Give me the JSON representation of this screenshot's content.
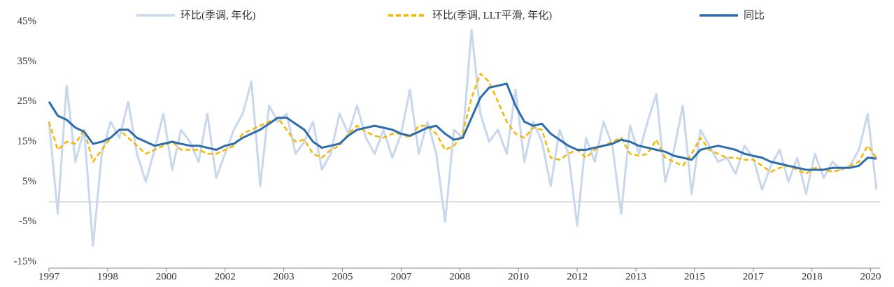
{
  "chart_data": {
    "type": "line",
    "x": [
      1997,
      1997.25,
      1997.5,
      1997.75,
      1998,
      1998.25,
      1998.5,
      1998.75,
      1999,
      1999.25,
      1999.5,
      1999.75,
      2000,
      2000.25,
      2000.5,
      2000.75,
      2001,
      2001.25,
      2001.5,
      2001.75,
      2002,
      2002.25,
      2002.5,
      2002.75,
      2003,
      2003.25,
      2003.5,
      2003.75,
      2004,
      2004.25,
      2004.5,
      2004.75,
      2005,
      2005.25,
      2005.5,
      2005.75,
      2006,
      2006.25,
      2006.5,
      2006.75,
      2007,
      2007.25,
      2007.5,
      2007.75,
      2008,
      2008.25,
      2008.5,
      2008.75,
      2009,
      2009.25,
      2009.5,
      2009.75,
      2010,
      2010.25,
      2010.5,
      2010.75,
      2011,
      2011.25,
      2011.5,
      2011.75,
      2012,
      2012.25,
      2012.5,
      2012.75,
      2013,
      2013.25,
      2013.5,
      2013.75,
      2014,
      2014.25,
      2014.5,
      2014.75,
      2015,
      2015.25,
      2015.5,
      2015.75,
      2016,
      2016.25,
      2016.5,
      2016.75,
      2017,
      2017.25,
      2017.5,
      2017.75,
      2018,
      2018.25,
      2018.5,
      2018.75,
      2019,
      2019.25,
      2019.5,
      2019.75,
      2020,
      2020.25,
      2020.5
    ],
    "series": [
      {
        "name": "环比(季调, 年化)",
        "color": "#c9d7ec",
        "style": "solid",
        "values": [
          20,
          -3,
          29,
          10,
          18,
          -11,
          12,
          20,
          16,
          25,
          12,
          5,
          13,
          22,
          8,
          18,
          15,
          10,
          22,
          6,
          12,
          18,
          22,
          30,
          4,
          24,
          20,
          22,
          12,
          15,
          20,
          8,
          12,
          22,
          17,
          24,
          16,
          12,
          18,
          11,
          17,
          28,
          12,
          20,
          12,
          -5,
          18,
          16,
          43,
          22,
          15,
          18,
          12,
          28,
          10,
          20,
          15,
          4,
          18,
          12,
          -6,
          16,
          10,
          20,
          14,
          -3,
          19,
          12,
          20,
          27,
          5,
          13,
          24,
          2,
          18,
          14,
          10,
          11,
          7,
          14,
          11,
          3,
          9,
          13,
          5,
          11,
          2,
          12,
          6,
          10,
          8,
          9,
          13,
          22,
          3
        ]
      },
      {
        "name": "环比(季调, LLT平滑, 年化)",
        "color": "#f5b800",
        "style": "dashed",
        "values": [
          20,
          13,
          15,
          14.5,
          18,
          10,
          13,
          16,
          18,
          16,
          14,
          12,
          13,
          14,
          15,
          13,
          13,
          13,
          12,
          12,
          13,
          14,
          17,
          18,
          19,
          20,
          21,
          18,
          15,
          15.5,
          12,
          11,
          13,
          14,
          17,
          19,
          17.5,
          16.5,
          16,
          17,
          17,
          16,
          19,
          19,
          17,
          13,
          14,
          17,
          26,
          32,
          30,
          25,
          20,
          17,
          16,
          18.5,
          18,
          11,
          10.5,
          12,
          13,
          11,
          13,
          14,
          15,
          16,
          12,
          11.5,
          12,
          15.5,
          11,
          10,
          9,
          12,
          16,
          13,
          12,
          11,
          11,
          10.5,
          10.5,
          9,
          7.5,
          8.5,
          9,
          8,
          7,
          8.5,
          8,
          7.5,
          8,
          9,
          10,
          14,
          11
        ]
      },
      {
        "name": "同比",
        "color": "#2e6dab",
        "style": "solid",
        "values": [
          25,
          21.5,
          20.5,
          18.5,
          17.5,
          14.5,
          15,
          16,
          18,
          18,
          16,
          15,
          14,
          14.5,
          15,
          14.5,
          14,
          14,
          13.5,
          13,
          14,
          14.5,
          16,
          17,
          18,
          19.5,
          21,
          21,
          19.5,
          18,
          15,
          13.5,
          14,
          14.5,
          16.5,
          18,
          18.5,
          19,
          18.5,
          18,
          17,
          16.5,
          17.5,
          18.5,
          19,
          17,
          15.5,
          16,
          21,
          26,
          28.5,
          29,
          29.5,
          24,
          20,
          19,
          19.5,
          17,
          15.5,
          14,
          13,
          13,
          13.5,
          14,
          14.5,
          15.5,
          15,
          14,
          13.5,
          13,
          12.5,
          11.5,
          11,
          10.5,
          13,
          13.5,
          14,
          13.5,
          13,
          12,
          11.5,
          11,
          10,
          9.5,
          9,
          8.5,
          8,
          8,
          8,
          8.5,
          8.5,
          8.5,
          9,
          11,
          10.8
        ]
      }
    ],
    "xlim": [
      1997,
      2020.6
    ],
    "xticks": [
      1997,
      {
        "value": 1998.667,
        "label": "1998"
      },
      {
        "value": 2000.333,
        "label": "2000"
      },
      {
        "value": 2002,
        "label": "2002"
      },
      {
        "value": 2003.667,
        "label": "2003"
      },
      {
        "value": 2005.333,
        "label": "2005"
      },
      {
        "value": 2007,
        "label": "2007"
      },
      {
        "value": 2008.667,
        "label": "2008"
      },
      {
        "value": 2010.333,
        "label": "2010"
      },
      {
        "value": 2012,
        "label": "2012"
      },
      {
        "value": 2013.667,
        "label": "2013"
      },
      {
        "value": 2015.333,
        "label": "2015"
      },
      {
        "value": 2017,
        "label": "2017"
      },
      {
        "value": 2018.667,
        "label": "2018"
      },
      {
        "value": 2020.333,
        "label": "2020"
      }
    ],
    "ylim": [
      -15,
      45
    ],
    "yticks": [
      {
        "value": -15,
        "label": "-15%"
      },
      {
        "value": -5,
        "label": "-5%"
      },
      {
        "value": 5,
        "label": "5%"
      },
      {
        "value": 15,
        "label": "15%"
      },
      {
        "value": 25,
        "label": "25%"
      },
      {
        "value": 35,
        "label": "35%"
      },
      {
        "value": 45,
        "label": "45%"
      }
    ],
    "legend": "top"
  }
}
